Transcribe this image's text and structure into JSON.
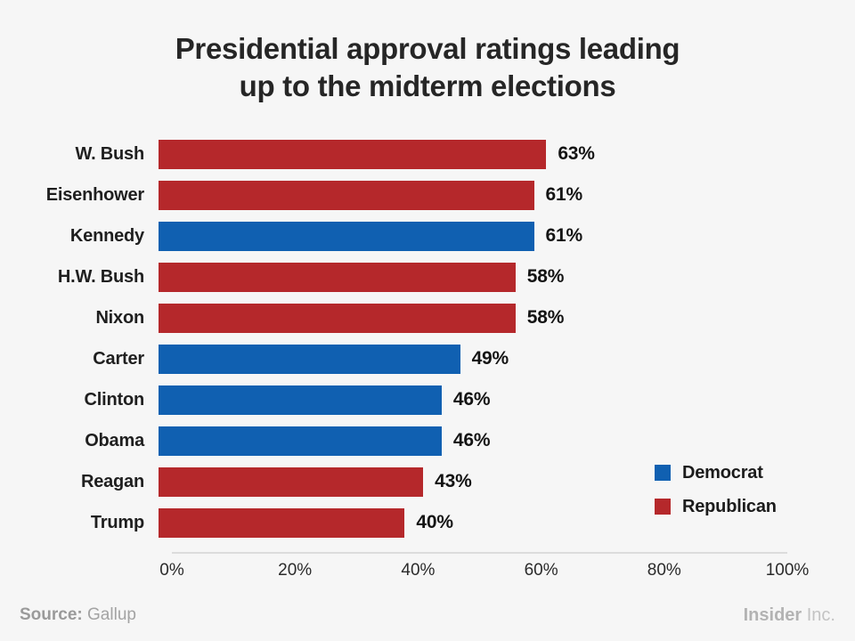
{
  "page": {
    "background_color": "#f6f6f6"
  },
  "chart_data": {
    "type": "bar",
    "orientation": "horizontal",
    "title": "Presidential approval ratings leading up to the midterm elections",
    "title_lines": [
      "Presidential approval ratings leading",
      "up to the midterm elections"
    ],
    "categories": [
      "W. Bush",
      "Eisenhower",
      "Kennedy",
      "H.W. Bush",
      "Nixon",
      "Carter",
      "Clinton",
      "Obama",
      "Reagan",
      "Trump"
    ],
    "values": [
      63,
      61,
      61,
      58,
      58,
      49,
      46,
      46,
      43,
      40
    ],
    "value_labels": [
      "63%",
      "61%",
      "61%",
      "58%",
      "58%",
      "49%",
      "46%",
      "46%",
      "43%",
      "40%"
    ],
    "parties": [
      "Republican",
      "Republican",
      "Democrat",
      "Republican",
      "Republican",
      "Democrat",
      "Democrat",
      "Democrat",
      "Republican",
      "Republican"
    ],
    "colors": {
      "Democrat": "#1060b1",
      "Republican": "#b5282b"
    },
    "xlabel": "",
    "ylabel": "",
    "xlim": [
      0,
      100
    ],
    "x_ticks": [
      "0%",
      "20%",
      "40%",
      "60%",
      "80%",
      "100%"
    ],
    "grid": false,
    "legend_position": "right-lower",
    "legend": [
      {
        "label": "Democrat",
        "color": "#1060b1"
      },
      {
        "label": "Republican",
        "color": "#b5282b"
      }
    ]
  },
  "footer": {
    "source_label": "Source:",
    "source_value": "Gallup",
    "brand_bold": "Insider",
    "brand_light": "Inc."
  }
}
